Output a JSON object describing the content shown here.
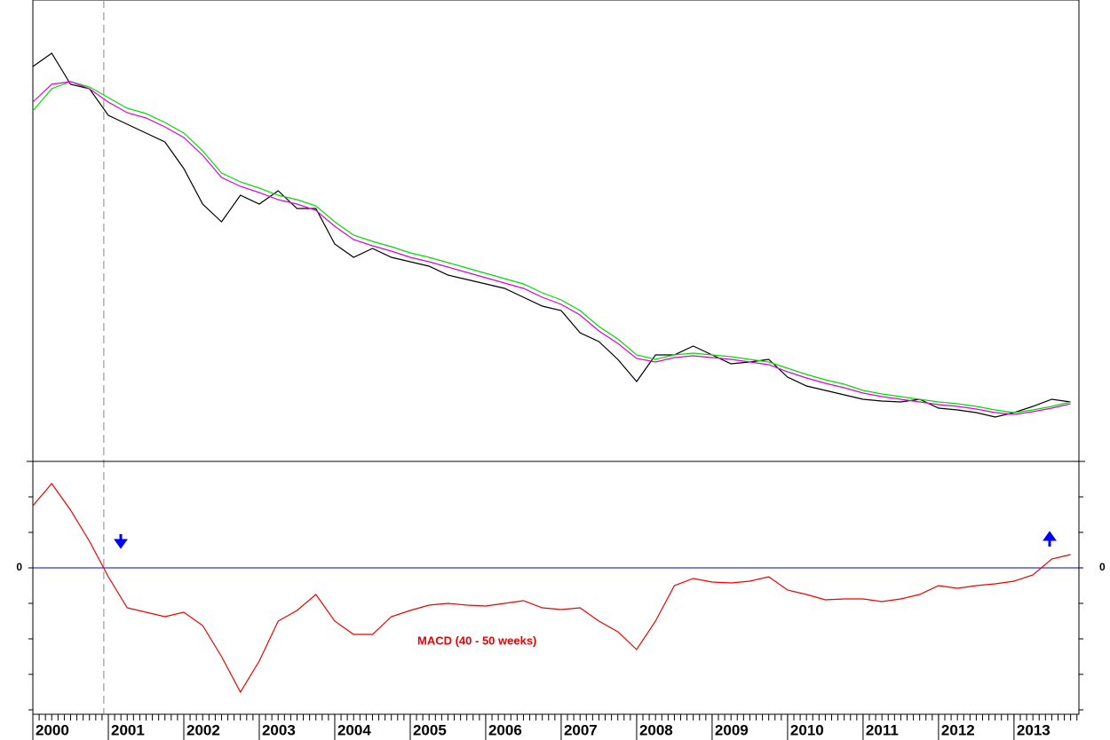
{
  "chart_data": [
    {
      "type": "line",
      "x": [
        2000,
        2000.25,
        2000.5,
        2000.75,
        2001,
        2001.25,
        2001.5,
        2001.75,
        2002,
        2002.25,
        2002.5,
        2002.75,
        2003,
        2003.25,
        2003.5,
        2003.75,
        2004,
        2004.25,
        2004.5,
        2004.75,
        2005,
        2005.25,
        2005.5,
        2005.75,
        2006,
        2006.25,
        2006.5,
        2006.75,
        2007,
        2007.25,
        2007.5,
        2007.75,
        2008,
        2008.25,
        2008.5,
        2008.75,
        2009,
        2009.25,
        2009.5,
        2009.75,
        2010,
        2010.25,
        2010.5,
        2010.75,
        2011,
        2011.25,
        2011.5,
        2011.75,
        2012,
        2012.25,
        2012.5,
        2012.75,
        2013,
        2013.25,
        2013.5,
        2013.75
      ],
      "series": [
        {
          "color": "#000000",
          "values": [
            445,
            460,
            425,
            420,
            390,
            380,
            370,
            360,
            330,
            290,
            270,
            300,
            290,
            305,
            285,
            285,
            245,
            230,
            240,
            230,
            225,
            220,
            210,
            205,
            200,
            195,
            185,
            175,
            170,
            145,
            135,
            115,
            90,
            120,
            120,
            130,
            120,
            110,
            112,
            115,
            95,
            85,
            80,
            75,
            70,
            68,
            67,
            70,
            60,
            58,
            55,
            50,
            55,
            62,
            70,
            67
          ]
        },
        {
          "color": "#00dd00",
          "values": [
            395,
            420,
            428,
            422,
            410,
            398,
            392,
            382,
            370,
            350,
            325,
            315,
            308,
            300,
            295,
            288,
            270,
            255,
            248,
            242,
            235,
            230,
            224,
            218,
            212,
            206,
            200,
            190,
            182,
            170,
            152,
            138,
            120,
            115,
            120,
            122,
            120,
            118,
            115,
            112,
            105,
            98,
            92,
            87,
            80,
            76,
            73,
            70,
            67,
            65,
            62,
            58,
            55,
            58,
            62,
            67
          ]
        },
        {
          "color": "#dd00dd",
          "values": [
            405,
            425,
            428,
            420,
            405,
            393,
            387,
            377,
            365,
            345,
            320,
            310,
            303,
            295,
            290,
            283,
            265,
            250,
            243,
            237,
            230,
            225,
            219,
            213,
            207,
            201,
            195,
            185,
            177,
            165,
            147,
            133,
            116,
            112,
            117,
            119,
            117,
            115,
            112,
            109,
            101,
            94,
            88,
            83,
            77,
            73,
            70,
            67,
            64,
            62,
            59,
            55,
            53,
            56,
            60,
            65
          ]
        }
      ],
      "xlim": [
        2000,
        2013.86
      ],
      "ylim": [
        0,
        520
      ],
      "vline": 2000.94
    },
    {
      "type": "line",
      "x": [
        2000,
        2000.25,
        2000.5,
        2000.75,
        2001,
        2001.25,
        2001.5,
        2001.75,
        2002,
        2002.25,
        2002.5,
        2002.75,
        2003,
        2003.25,
        2003.5,
        2003.75,
        2004,
        2004.25,
        2004.5,
        2004.75,
        2005,
        2005.25,
        2005.5,
        2005.75,
        2006,
        2006.25,
        2006.5,
        2006.75,
        2007,
        2007.25,
        2007.5,
        2007.75,
        2008,
        2008.25,
        2008.5,
        2008.75,
        2009,
        2009.25,
        2009.5,
        2009.75,
        2010,
        2010.25,
        2010.5,
        2010.75,
        2011,
        2011.25,
        2011.5,
        2011.75,
        2012,
        2012.25,
        2012.5,
        2012.75,
        2013,
        2013.25,
        2013.5,
        2013.75
      ],
      "series": [
        {
          "color": "#ee0000",
          "values": [
            70,
            95,
            65,
            30,
            -10,
            -45,
            -50,
            -55,
            -50,
            -65,
            -100,
            -140,
            -105,
            -60,
            -48,
            -30,
            -60,
            -75,
            -75,
            -55,
            -48,
            -42,
            -40,
            -42,
            -43,
            -40,
            -37,
            -45,
            -47,
            -45,
            -60,
            -72,
            -92,
            -60,
            -20,
            -12,
            -16,
            -17,
            -15,
            -10,
            -25,
            -30,
            -36,
            -35,
            -35,
            -38,
            -35,
            -30,
            -20,
            -23,
            -20,
            -18,
            -15,
            -8,
            10,
            15
          ]
        }
      ],
      "annotation": "MACD (40 - 50 weeks)",
      "xlim": [
        2000,
        2013.86
      ],
      "ylim": [
        -165,
        120
      ],
      "yticks": [
        0
      ],
      "minor_yticks": [
        80,
        40,
        -40,
        -80,
        -120,
        -160
      ],
      "zero_line_color": "#0000cc",
      "xticks": [
        2000,
        2001,
        2002,
        2003,
        2004,
        2005,
        2006,
        2007,
        2008,
        2009,
        2010,
        2011,
        2012,
        2013
      ]
    }
  ]
}
